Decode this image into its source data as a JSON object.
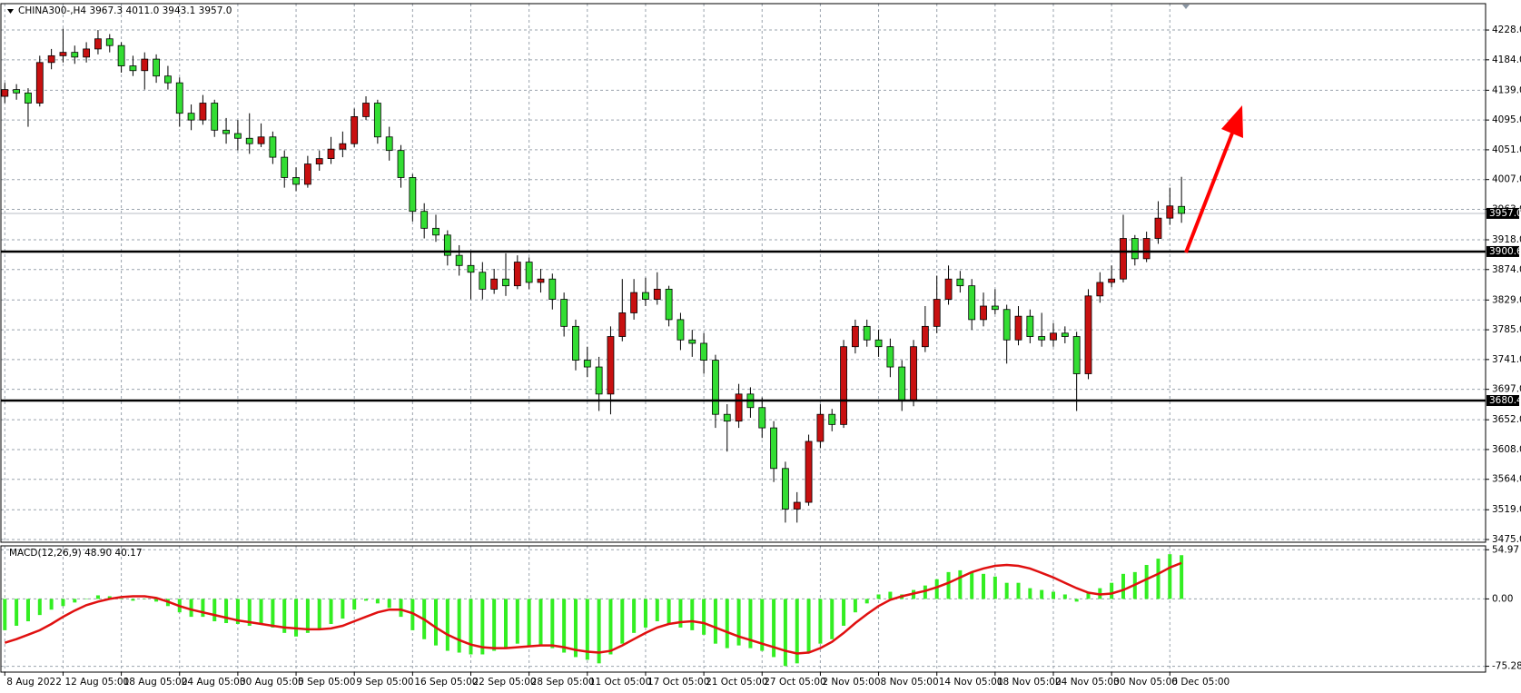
{
  "chart_data": [
    {
      "type": "candlestick",
      "title": "CHINA300-,H4  3967.3 4011.0 3943.1 3957.0",
      "up_color": "#c81010",
      "down_color": "#33dd33",
      "ylim": [
        3471,
        4267
      ],
      "yticks": [
        {
          "value": 4228,
          "label": "4228.0"
        },
        {
          "value": 4184,
          "label": "4184.0"
        },
        {
          "value": 4139,
          "label": "4139.0"
        },
        {
          "value": 4095,
          "label": "4095.0"
        },
        {
          "value": 4051,
          "label": "4051.0"
        },
        {
          "value": 4007,
          "label": "4007.0"
        },
        {
          "value": 3963,
          "label": "3963.0"
        },
        {
          "value": 3918,
          "label": "3918.0"
        },
        {
          "value": 3874,
          "label": "3874.0"
        },
        {
          "value": 3829,
          "label": "3829.0"
        },
        {
          "value": 3785,
          "label": "3785.0"
        },
        {
          "value": 3741,
          "label": "3741.0"
        },
        {
          "value": 3697,
          "label": "3697.0"
        },
        {
          "value": 3652,
          "label": "3652.0"
        },
        {
          "value": 3608,
          "label": "3608.0"
        },
        {
          "value": 3564,
          "label": "3564.0"
        },
        {
          "value": 3519,
          "label": "3519.0"
        },
        {
          "value": 3475,
          "label": "3475.0"
        }
      ],
      "grid": true,
      "hlines": [
        {
          "value": 3900.6,
          "label": "3900.6"
        },
        {
          "value": 3680.4,
          "label": "3680.4"
        }
      ],
      "last_price": {
        "value": 3957,
        "label": "3957.0"
      },
      "categories": [
        "8 Aug 2022",
        null,
        null,
        null,
        null,
        "12 Aug 05:00",
        null,
        null,
        null,
        null,
        "18 Aug 05:00",
        null,
        null,
        null,
        null,
        "24 Aug 05:00",
        null,
        null,
        null,
        null,
        "30 Aug 05:00",
        null,
        null,
        null,
        null,
        "5 Sep 05:00",
        null,
        null,
        null,
        null,
        "9 Sep 05:00",
        null,
        null,
        null,
        null,
        "16 Sep 05:00",
        null,
        null,
        null,
        null,
        "22 Sep 05:00",
        null,
        null,
        null,
        null,
        "28 Sep 05:00",
        null,
        null,
        null,
        null,
        "11 Oct 05:00",
        null,
        null,
        null,
        null,
        "17 Oct 05:00",
        null,
        null,
        null,
        null,
        "21 Oct 05:00",
        null,
        null,
        null,
        null,
        "27 Oct 05:00",
        null,
        null,
        null,
        null,
        "2 Nov 05:00",
        null,
        null,
        null,
        null,
        "8 Nov 05:00",
        null,
        null,
        null,
        null,
        "14 Nov 05:00",
        null,
        null,
        null,
        null,
        "18 Nov 05:00",
        null,
        null,
        null,
        null,
        "24 Nov 05:00",
        null,
        null,
        null,
        null,
        "30 Nov 05:00",
        null,
        null,
        null,
        null,
        "6 Dec 05:00",
        null
      ],
      "ohlc": [
        [
          4130,
          4150,
          4120,
          4140
        ],
        [
          4140,
          4148,
          4125,
          4135
        ],
        [
          4135,
          4142,
          4085,
          4120
        ],
        [
          4120,
          4190,
          4115,
          4180
        ],
        [
          4180,
          4200,
          4170,
          4190
        ],
        [
          4190,
          4230,
          4180,
          4195
        ],
        [
          4195,
          4205,
          4178,
          4188
        ],
        [
          4188,
          4210,
          4180,
          4200
        ],
        [
          4200,
          4228,
          4192,
          4215
        ],
        [
          4215,
          4222,
          4195,
          4205
        ],
        [
          4205,
          4210,
          4165,
          4175
        ],
        [
          4175,
          4190,
          4160,
          4168
        ],
        [
          4168,
          4195,
          4140,
          4185
        ],
        [
          4185,
          4192,
          4150,
          4160
        ],
        [
          4160,
          4175,
          4140,
          4150
        ],
        [
          4150,
          4158,
          4085,
          4105
        ],
        [
          4105,
          4118,
          4080,
          4095
        ],
        [
          4095,
          4132,
          4088,
          4120
        ],
        [
          4120,
          4125,
          4070,
          4080
        ],
        [
          4080,
          4098,
          4060,
          4075
        ],
        [
          4075,
          4095,
          4050,
          4068
        ],
        [
          4068,
          4105,
          4045,
          4060
        ],
        [
          4060,
          4090,
          4055,
          4070
        ],
        [
          4070,
          4078,
          4030,
          4040
        ],
        [
          4040,
          4050,
          3995,
          4010
        ],
        [
          4010,
          4025,
          3990,
          4000
        ],
        [
          4000,
          4042,
          3995,
          4030
        ],
        [
          4030,
          4050,
          4020,
          4038
        ],
        [
          4038,
          4070,
          4030,
          4052
        ],
        [
          4052,
          4078,
          4040,
          4060
        ],
        [
          4060,
          4112,
          4055,
          4100
        ],
        [
          4100,
          4130,
          4095,
          4120
        ],
        [
          4120,
          4125,
          4060,
          4070
        ],
        [
          4070,
          4085,
          4035,
          4050
        ],
        [
          4050,
          4058,
          3995,
          4010
        ],
        [
          4010,
          4015,
          3945,
          3960
        ],
        [
          3960,
          3972,
          3920,
          3935
        ],
        [
          3935,
          3955,
          3915,
          3925
        ],
        [
          3925,
          3932,
          3880,
          3895
        ],
        [
          3895,
          3910,
          3865,
          3880
        ],
        [
          3880,
          3900,
          3830,
          3870
        ],
        [
          3870,
          3885,
          3830,
          3845
        ],
        [
          3845,
          3875,
          3838,
          3860
        ],
        [
          3860,
          3898,
          3835,
          3850
        ],
        [
          3850,
          3895,
          3845,
          3885
        ],
        [
          3885,
          3892,
          3845,
          3855
        ],
        [
          3855,
          3875,
          3840,
          3860
        ],
        [
          3860,
          3868,
          3815,
          3830
        ],
        [
          3830,
          3840,
          3775,
          3790
        ],
        [
          3790,
          3800,
          3725,
          3740
        ],
        [
          3740,
          3760,
          3715,
          3730
        ],
        [
          3730,
          3745,
          3665,
          3690
        ],
        [
          3690,
          3790,
          3660,
          3775
        ],
        [
          3775,
          3860,
          3768,
          3810
        ],
        [
          3810,
          3860,
          3800,
          3840
        ],
        [
          3840,
          3862,
          3820,
          3830
        ],
        [
          3830,
          3870,
          3822,
          3845
        ],
        [
          3845,
          3850,
          3790,
          3800
        ],
        [
          3800,
          3810,
          3755,
          3770
        ],
        [
          3770,
          3785,
          3745,
          3765
        ],
        [
          3765,
          3780,
          3720,
          3740
        ],
        [
          3740,
          3748,
          3640,
          3660
        ],
        [
          3660,
          3675,
          3605,
          3650
        ],
        [
          3650,
          3705,
          3640,
          3690
        ],
        [
          3690,
          3700,
          3655,
          3670
        ],
        [
          3670,
          3685,
          3625,
          3640
        ],
        [
          3640,
          3650,
          3560,
          3580
        ],
        [
          3580,
          3590,
          3500,
          3520
        ],
        [
          3520,
          3545,
          3500,
          3530
        ],
        [
          3530,
          3630,
          3525,
          3620
        ],
        [
          3620,
          3675,
          3610,
          3660
        ],
        [
          3660,
          3668,
          3635,
          3645
        ],
        [
          3645,
          3770,
          3640,
          3760
        ],
        [
          3760,
          3800,
          3750,
          3790
        ],
        [
          3790,
          3800,
          3760,
          3770
        ],
        [
          3770,
          3785,
          3745,
          3760
        ],
        [
          3760,
          3772,
          3715,
          3730
        ],
        [
          3730,
          3740,
          3665,
          3680
        ],
        [
          3680,
          3770,
          3672,
          3760
        ],
        [
          3760,
          3820,
          3752,
          3790
        ],
        [
          3790,
          3865,
          3780,
          3830
        ],
        [
          3830,
          3880,
          3822,
          3860
        ],
        [
          3860,
          3872,
          3840,
          3850
        ],
        [
          3850,
          3860,
          3785,
          3800
        ],
        [
          3800,
          3840,
          3790,
          3820
        ],
        [
          3820,
          3845,
          3808,
          3815
        ],
        [
          3815,
          3822,
          3735,
          3770
        ],
        [
          3770,
          3820,
          3762,
          3805
        ],
        [
          3805,
          3815,
          3765,
          3775
        ],
        [
          3775,
          3810,
          3760,
          3770
        ],
        [
          3770,
          3795,
          3760,
          3780
        ],
        [
          3780,
          3790,
          3765,
          3775
        ],
        [
          3775,
          3782,
          3665,
          3720
        ],
        [
          3720,
          3845,
          3712,
          3835
        ],
        [
          3835,
          3870,
          3825,
          3855
        ],
        [
          3855,
          3880,
          3848,
          3860
        ],
        [
          3860,
          3955,
          3855,
          3920
        ],
        [
          3920,
          3925,
          3880,
          3890
        ],
        [
          3890,
          3930,
          3885,
          3920
        ],
        [
          3920,
          3975,
          3912,
          3950
        ],
        [
          3950,
          3995,
          3940,
          3968
        ],
        [
          3967.3,
          4011,
          3943.1,
          3957
        ]
      ]
    },
    {
      "type": "macd",
      "title": "MACD(12,26,9) 48.90 40.17",
      "ylim": [
        -81.8,
        59.3
      ],
      "yticks": [
        {
          "value": 54.97,
          "label": "54.97"
        },
        {
          "value": 0,
          "label": "0.00"
        },
        {
          "value": -75.28,
          "label": "-75.28"
        }
      ],
      "grid": true,
      "histogram": {
        "color": "#33ee22",
        "values": [
          -35,
          -30,
          -25,
          -18,
          -12,
          -8,
          -4,
          0,
          4,
          3,
          0,
          -2,
          0,
          -3,
          -8,
          -15,
          -20,
          -20,
          -25,
          -27,
          -28,
          -30,
          -28,
          -32,
          -38,
          -42,
          -38,
          -33,
          -28,
          -22,
          -12,
          -2,
          -5,
          -10,
          -20,
          -35,
          -45,
          -52,
          -58,
          -60,
          -62,
          -62,
          -58,
          -55,
          -50,
          -52,
          -52,
          -55,
          -60,
          -65,
          -68,
          -72,
          -62,
          -50,
          -38,
          -32,
          -25,
          -28,
          -32,
          -35,
          -40,
          -50,
          -55,
          -52,
          -55,
          -58,
          -65,
          -75,
          -72,
          -60,
          -50,
          -45,
          -30,
          -15,
          -5,
          5,
          8,
          5,
          10,
          15,
          22,
          30,
          32,
          30,
          28,
          25,
          18,
          18,
          12,
          10,
          8,
          5,
          -3,
          8,
          12,
          18,
          28,
          30,
          38,
          45,
          50,
          48.9
        ]
      },
      "signal": {
        "color": "#e01010",
        "values": [
          -49,
          -45,
          -40,
          -35,
          -28,
          -20,
          -13,
          -7,
          -3,
          0,
          2,
          3,
          3,
          1,
          -3,
          -8,
          -12,
          -15,
          -18,
          -21,
          -24,
          -26,
          -28,
          -30,
          -32,
          -33,
          -34,
          -34,
          -33,
          -30,
          -25,
          -20,
          -15,
          -12,
          -12,
          -16,
          -23,
          -32,
          -40,
          -46,
          -51,
          -54,
          -55,
          -55,
          -54,
          -53,
          -52,
          -52,
          -54,
          -57,
          -59,
          -60,
          -58,
          -52,
          -45,
          -38,
          -32,
          -28,
          -26,
          -25,
          -27,
          -32,
          -37,
          -42,
          -46,
          -50,
          -54,
          -58,
          -61,
          -60,
          -55,
          -48,
          -38,
          -27,
          -17,
          -8,
          -1,
          3,
          6,
          9,
          13,
          18,
          24,
          30,
          34,
          37,
          38,
          37,
          34,
          29,
          24,
          18,
          12,
          7,
          5,
          6,
          10,
          16,
          22,
          28,
          35,
          40.17
        ]
      }
    }
  ]
}
